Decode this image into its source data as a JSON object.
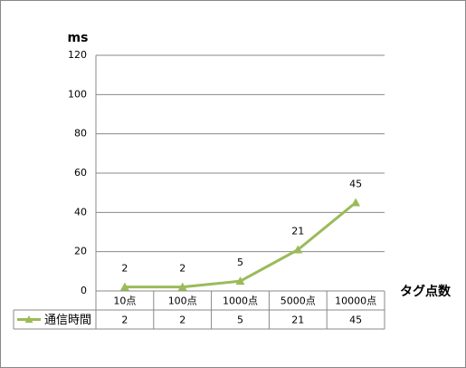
{
  "chart_data": {
    "type": "line",
    "ylabel": "ms",
    "xlabel": "タグ点数",
    "categories": [
      "10点",
      "100点",
      "1000点",
      "5000点",
      "10000点"
    ],
    "series": [
      {
        "name": "通信時間",
        "color": "#9bbb59",
        "values": [
          2,
          2,
          5,
          21,
          45
        ]
      }
    ],
    "ylim": [
      0,
      120
    ],
    "yticks": [
      0,
      20,
      40,
      60,
      80,
      100,
      120
    ],
    "grid": true,
    "data_labels": true,
    "data_table": true
  }
}
